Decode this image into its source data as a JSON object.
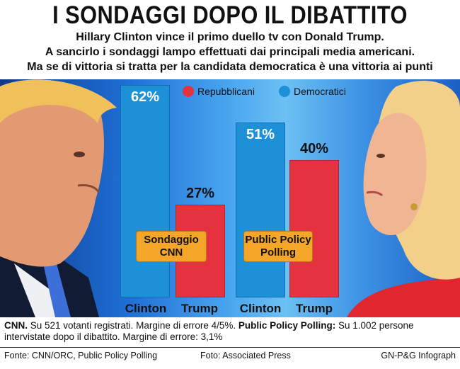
{
  "header": {
    "title": "I SONDAGGI DOPO IL DIBATTITO",
    "subtitle_lines": [
      "Hillary Clinton vince il primo duello tv con Donald Trump.",
      "A sancirlo i sondaggi lampo effettuati dai principali media americani.",
      "Ma se di vittoria si tratta per la candidata democratica è una vittoria ai punti"
    ]
  },
  "legend": [
    {
      "label": "Repubblicani",
      "color": "#e5323f"
    },
    {
      "label": "Democratici",
      "color": "#1e90d8"
    }
  ],
  "chart_data": {
    "type": "bar",
    "groups": [
      {
        "name": "Sondaggio CNN",
        "categories": [
          "Clinton",
          "Trump"
        ],
        "values": [
          62,
          27
        ],
        "labels": [
          "62%",
          "27%"
        ],
        "colors": [
          "#1e90d8",
          "#e5323f"
        ]
      },
      {
        "name": "Public Policy Polling",
        "categories": [
          "Clinton",
          "Trump"
        ],
        "values": [
          51,
          40
        ],
        "labels": [
          "51%",
          "40%"
        ],
        "colors": [
          "#1e90d8",
          "#e5323f"
        ]
      }
    ],
    "ylim": [
      0,
      62
    ]
  },
  "note": {
    "cnn_label": "CNN.",
    "cnn_text": " Su 521 votanti registrati. Margine di errore 4/5%.",
    "ppp_label": "Public Policy Polling:",
    "ppp_text": " Su 1.002 persone intervistate dopo il dibattito. Margine di errore: 3,1%"
  },
  "credits": {
    "source": "Fonte: CNN/ORC, Public Policy Polling",
    "photo": "Foto: Associated Press",
    "agency": "GN-P&G Infograph"
  }
}
